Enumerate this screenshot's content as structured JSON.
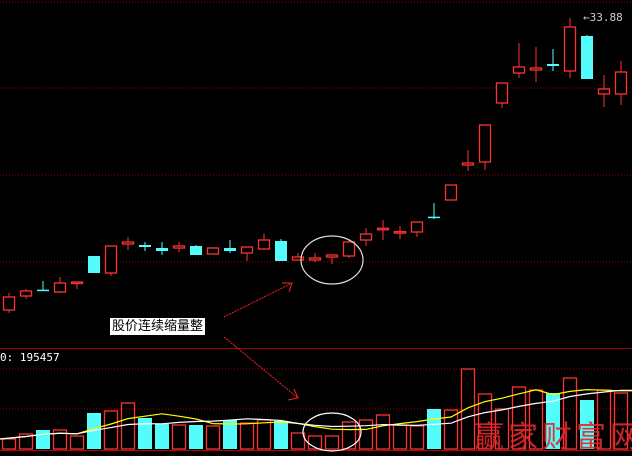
{
  "chart_data": {
    "type": "candlestick",
    "price_ylim": [
      14.26,
      34.96
    ],
    "high_label": "33.88",
    "candles": [
      [
        16.36,
        17.38,
        16.18,
        17.14
      ],
      [
        17.2,
        17.62,
        17.02,
        17.5
      ],
      [
        17.58,
        18.1,
        17.56,
        17.56
      ],
      [
        17.44,
        18.34,
        17.38,
        17.98
      ],
      [
        18.02,
        18.04,
        17.62,
        18.04
      ],
      [
        19.6,
        19.6,
        18.58,
        18.58
      ],
      [
        18.58,
        20.2,
        18.4,
        20.2
      ],
      [
        20.32,
        20.74,
        19.96,
        20.44
      ],
      [
        20.26,
        20.44,
        19.9,
        20.14
      ],
      [
        20.08,
        20.44,
        19.66,
        19.9
      ],
      [
        20.08,
        20.44,
        19.84,
        20.2
      ],
      [
        20.2,
        20.26,
        19.66,
        19.66
      ],
      [
        19.72,
        20.14,
        19.72,
        20.08
      ],
      [
        20.08,
        20.56,
        19.78,
        19.9
      ],
      [
        19.78,
        20.14,
        19.3,
        20.14
      ],
      [
        20.02,
        20.92,
        20.02,
        20.56
      ],
      [
        20.5,
        20.62,
        19.3,
        19.3
      ],
      [
        19.36,
        19.78,
        19.36,
        19.54
      ],
      [
        19.36,
        19.78,
        19.24,
        19.48
      ],
      [
        19.54,
        19.66,
        19.12,
        19.66
      ],
      [
        19.6,
        20.62,
        19.48,
        20.44
      ],
      [
        20.56,
        21.28,
        20.2,
        20.92
      ],
      [
        21.22,
        21.76,
        20.56,
        21.26
      ],
      [
        21.04,
        21.4,
        20.62,
        21.06
      ],
      [
        21.04,
        21.64,
        20.74,
        21.64
      ],
      [
        21.96,
        22.78,
        21.82,
        21.94
      ],
      [
        22.96,
        23.86,
        22.96,
        23.86
      ],
      [
        25.06,
        25.96,
        24.7,
        25.18
      ],
      [
        25.24,
        27.46,
        24.76,
        27.46
      ],
      [
        28.78,
        29.98,
        28.48,
        29.98
      ],
      [
        30.58,
        32.38,
        30.28,
        30.94
      ],
      [
        30.76,
        32.14,
        30.04,
        30.88
      ],
      [
        31.12,
        32.02,
        30.7,
        31.0
      ],
      [
        30.7,
        33.88,
        30.28,
        33.34
      ],
      [
        32.8,
        32.86,
        30.22,
        30.22
      ],
      [
        29.32,
        30.46,
        28.54,
        29.62
      ],
      [
        29.32,
        31.3,
        28.66,
        30.64
      ]
    ],
    "volume_label": "0: 195457",
    "volume_ylim": [
      0,
      349000
    ],
    "volumes": [
      34900,
      52350,
      66310,
      66310,
      45370,
      125640,
      132620,
      160540,
      108190,
      87250,
      83760,
      83760,
      80270,
      101210,
      90740,
      101210,
      97720,
      55840,
      45370,
      45370,
      94230,
      101210,
      118660,
      83760,
      80270,
      139600,
      136110,
      279200,
      191950,
      139600,
      216380,
      205910,
      195440,
      247790,
      171010,
      205910,
      195457
    ],
    "ma_periods": [
      5,
      10
    ],
    "colors": {
      "up": "#ff3232",
      "down": "#54fcfc",
      "ma5": "#ffff00",
      "ma10": "#ffffff",
      "grid": "#a00000",
      "annotation_circle": "#dddddd",
      "arrow": "#ff2020"
    },
    "grid": true,
    "annotation": "股价连续缩量整",
    "highlighted_candles": [
      18,
      19,
      20
    ]
  },
  "watermark": "赢家财富网"
}
